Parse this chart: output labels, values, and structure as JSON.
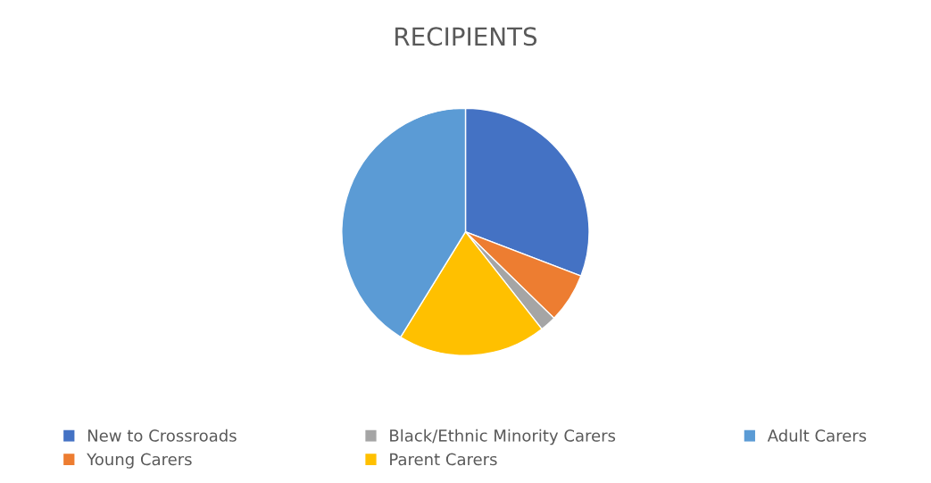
{
  "chart_data": {
    "type": "pie",
    "title": "RECIPIENTS",
    "categories": [
      "New to Crossroads",
      "Young Carers",
      "Black/Ethnic Minority Carers",
      "Parent Carers",
      "Adult Carers"
    ],
    "values": [
      30.8,
      6.5,
      2.1,
      19.4,
      41.2
    ],
    "colors": [
      "#4472c4",
      "#ed7d31",
      "#a5a5a5",
      "#ffc000",
      "#5b9bd5"
    ],
    "legend": "bottom"
  }
}
